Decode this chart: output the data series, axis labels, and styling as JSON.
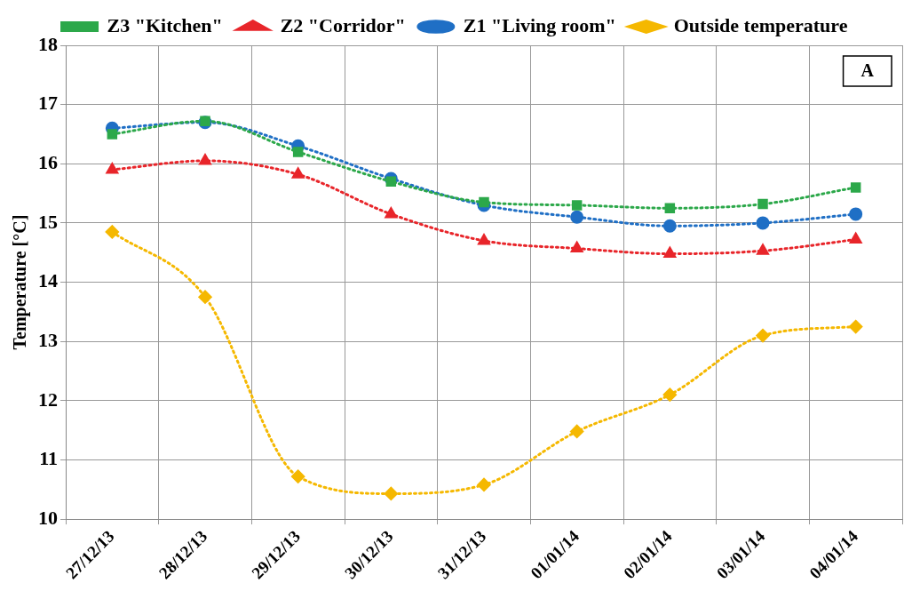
{
  "chart_data": {
    "type": "line",
    "ylabel": "Temperature [°C]",
    "categories": [
      "27/12/13",
      "28/12/13",
      "29/12/13",
      "30/12/13",
      "31/12/13",
      "01/01/14",
      "02/01/14",
      "03/01/14",
      "04/01/14"
    ],
    "series": [
      {
        "name": "Outside temperature",
        "color": "#f5b800",
        "marker": "diamond",
        "values": [
          14.85,
          13.75,
          10.72,
          10.43,
          10.58,
          11.48,
          12.1,
          13.1,
          13.25
        ]
      },
      {
        "name": "Z1 \"Living room\"",
        "color": "#1f6fc5",
        "marker": "circle",
        "values": [
          16.6,
          16.7,
          16.3,
          15.75,
          15.3,
          15.1,
          14.95,
          15.0,
          15.15
        ]
      },
      {
        "name": "Z2 \"Corridor\"",
        "color": "#e8252a",
        "marker": "triangle",
        "values": [
          15.9,
          16.05,
          15.82,
          15.15,
          14.7,
          14.57,
          14.48,
          14.53,
          14.72
        ]
      },
      {
        "name": "Z3 \"Kitchen\"",
        "color": "#2ca84a",
        "marker": "square",
        "values": [
          16.5,
          16.72,
          16.2,
          15.7,
          15.35,
          15.3,
          15.25,
          15.32,
          15.6
        ]
      }
    ],
    "ylim": [
      10,
      18
    ],
    "yticks": [
      10,
      11,
      12,
      13,
      14,
      15,
      16,
      17,
      18
    ],
    "grid": true,
    "legend": "top",
    "line_style": "dotted",
    "annotations": [
      "A"
    ]
  }
}
